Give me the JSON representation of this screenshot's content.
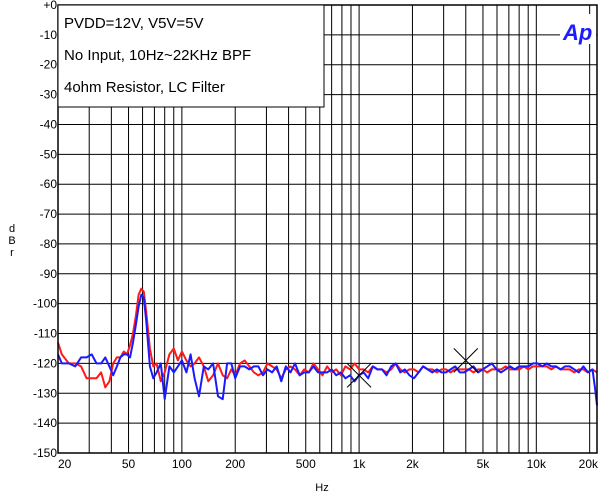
{
  "chart_data": {
    "type": "line",
    "title": "",
    "annotation_lines": [
      "PVDD=12V, V5V=5V",
      "No Input, 10Hz~22KHz BPF",
      "4ohm Resistor, LC Filter"
    ],
    "logo": "Ap",
    "xlabel": "Hz",
    "ylabel": "dBr",
    "xscale": "log",
    "xlim": [
      20,
      22000
    ],
    "ylim": [
      -150,
      0
    ],
    "grid": true,
    "legend": "none",
    "x_tick_labels": [
      {
        "value": 20,
        "label": "20"
      },
      {
        "value": 50,
        "label": "50"
      },
      {
        "value": 100,
        "label": "100"
      },
      {
        "value": 200,
        "label": "200"
      },
      {
        "value": 500,
        "label": "500"
      },
      {
        "value": 1000,
        "label": "1k"
      },
      {
        "value": 2000,
        "label": "2k"
      },
      {
        "value": 5000,
        "label": "5k"
      },
      {
        "value": 10000,
        "label": "10k"
      },
      {
        "value": 20000,
        "label": "20k"
      }
    ],
    "y_tick_labels": [
      {
        "value": 0,
        "label": "+0"
      },
      {
        "value": -10,
        "label": "-10"
      },
      {
        "value": -20,
        "label": "-20"
      },
      {
        "value": -30,
        "label": "-30"
      },
      {
        "value": -40,
        "label": "-40"
      },
      {
        "value": -50,
        "label": "-50"
      },
      {
        "value": -60,
        "label": "-60"
      },
      {
        "value": -70,
        "label": "-70"
      },
      {
        "value": -80,
        "label": "-80"
      },
      {
        "value": -90,
        "label": "-90"
      },
      {
        "value": -100,
        "label": "-100"
      },
      {
        "value": -110,
        "label": "-110"
      },
      {
        "value": -120,
        "label": "-120"
      },
      {
        "value": -130,
        "label": "-130"
      },
      {
        "value": -140,
        "label": "-140"
      },
      {
        "value": -150,
        "label": "-150"
      }
    ],
    "markers": [
      {
        "x": 1000,
        "y": -124
      },
      {
        "x": 4000,
        "y": -119
      }
    ],
    "series": [
      {
        "color": "#ff1a1a",
        "points": [
          [
            20,
            -113
          ],
          [
            21,
            -117
          ],
          [
            23,
            -120
          ],
          [
            25,
            -120
          ],
          [
            27,
            -121
          ],
          [
            29,
            -125
          ],
          [
            31,
            -125
          ],
          [
            33,
            -125
          ],
          [
            35,
            -123
          ],
          [
            37,
            -128
          ],
          [
            39,
            -126
          ],
          [
            41,
            -120
          ],
          [
            43,
            -118
          ],
          [
            45,
            -118
          ],
          [
            47,
            -116
          ],
          [
            49,
            -117
          ],
          [
            51,
            -114
          ],
          [
            53,
            -110
          ],
          [
            55,
            -104
          ],
          [
            57,
            -97
          ],
          [
            59,
            -95
          ],
          [
            61,
            -96
          ],
          [
            63,
            -103
          ],
          [
            66,
            -115
          ],
          [
            69,
            -121
          ],
          [
            72,
            -120
          ],
          [
            76,
            -126
          ],
          [
            80,
            -123
          ],
          [
            85,
            -117
          ],
          [
            90,
            -115
          ],
          [
            95,
            -119
          ],
          [
            100,
            -116
          ],
          [
            106,
            -119
          ],
          [
            112,
            -121
          ],
          [
            118,
            -120
          ],
          [
            125,
            -118
          ],
          [
            133,
            -121
          ],
          [
            141,
            -126
          ],
          [
            150,
            -124
          ],
          [
            160,
            -120
          ],
          [
            170,
            -124
          ],
          [
            180,
            -125
          ],
          [
            190,
            -122
          ],
          [
            200,
            -124
          ],
          [
            213,
            -120
          ],
          [
            226,
            -119
          ],
          [
            240,
            -121
          ],
          [
            255,
            -123
          ],
          [
            270,
            -124
          ],
          [
            287,
            -123
          ],
          [
            304,
            -120
          ],
          [
            323,
            -121
          ],
          [
            343,
            -122
          ],
          [
            364,
            -125
          ],
          [
            386,
            -122
          ],
          [
            410,
            -121
          ],
          [
            435,
            -122
          ],
          [
            462,
            -124
          ],
          [
            490,
            -122
          ],
          [
            520,
            -123
          ],
          [
            552,
            -120
          ],
          [
            586,
            -122
          ],
          [
            622,
            -124
          ],
          [
            660,
            -121
          ],
          [
            700,
            -123
          ],
          [
            743,
            -122
          ],
          [
            789,
            -124
          ],
          [
            837,
            -121
          ],
          [
            888,
            -122
          ],
          [
            943,
            -120
          ],
          [
            1000,
            -122
          ],
          [
            1061,
            -122
          ],
          [
            1126,
            -123
          ],
          [
            1195,
            -121
          ],
          [
            1268,
            -122
          ],
          [
            1346,
            -122
          ],
          [
            1428,
            -123
          ],
          [
            1516,
            -122
          ],
          [
            1609,
            -120
          ],
          [
            1707,
            -122
          ],
          [
            1812,
            -123
          ],
          [
            1923,
            -122
          ],
          [
            2041,
            -122
          ],
          [
            2166,
            -123
          ],
          [
            2298,
            -121
          ],
          [
            2439,
            -122
          ],
          [
            2589,
            -122
          ],
          [
            2747,
            -123
          ],
          [
            2916,
            -122
          ],
          [
            3094,
            -122
          ],
          [
            3284,
            -123
          ],
          [
            3485,
            -122
          ],
          [
            3699,
            -122
          ],
          [
            3925,
            -122
          ],
          [
            4166,
            -122
          ],
          [
            4421,
            -123
          ],
          [
            4692,
            -122
          ],
          [
            4980,
            -122
          ],
          [
            5285,
            -123
          ],
          [
            5609,
            -122
          ],
          [
            5953,
            -122
          ],
          [
            6317,
            -122
          ],
          [
            6704,
            -121
          ],
          [
            7115,
            -122
          ],
          [
            7551,
            -122
          ],
          [
            8014,
            -122
          ],
          [
            8505,
            -121
          ],
          [
            9026,
            -122
          ],
          [
            9579,
            -121
          ],
          [
            10166,
            -121
          ],
          [
            10789,
            -121
          ],
          [
            11450,
            -121
          ],
          [
            12152,
            -122
          ],
          [
            12896,
            -121
          ],
          [
            13686,
            -122
          ],
          [
            14525,
            -122
          ],
          [
            15415,
            -122
          ],
          [
            16359,
            -123
          ],
          [
            17361,
            -122
          ],
          [
            18425,
            -122
          ],
          [
            19554,
            -123
          ],
          [
            20752,
            -122
          ],
          [
            22000,
            -123
          ]
        ]
      },
      {
        "color": "#1a1aff",
        "points": [
          [
            20,
            -117
          ],
          [
            21,
            -120
          ],
          [
            23,
            -120
          ],
          [
            25,
            -121
          ],
          [
            27,
            -118
          ],
          [
            29,
            -118
          ],
          [
            31,
            -117
          ],
          [
            33,
            -120
          ],
          [
            35,
            -120
          ],
          [
            37,
            -118
          ],
          [
            39,
            -121
          ],
          [
            41,
            -124
          ],
          [
            43,
            -121
          ],
          [
            45,
            -118
          ],
          [
            47,
            -117
          ],
          [
            49,
            -117
          ],
          [
            51,
            -118
          ],
          [
            53,
            -113
          ],
          [
            55,
            -107
          ],
          [
            57,
            -101
          ],
          [
            59,
            -97
          ],
          [
            61,
            -98
          ],
          [
            63,
            -106
          ],
          [
            66,
            -121
          ],
          [
            69,
            -125
          ],
          [
            72,
            -123
          ],
          [
            76,
            -120
          ],
          [
            80,
            -132
          ],
          [
            85,
            -121
          ],
          [
            90,
            -123
          ],
          [
            95,
            -121
          ],
          [
            100,
            -119
          ],
          [
            106,
            -123
          ],
          [
            112,
            -117
          ],
          [
            118,
            -125
          ],
          [
            125,
            -131
          ],
          [
            133,
            -121
          ],
          [
            141,
            -122
          ],
          [
            150,
            -120
          ],
          [
            160,
            -131
          ],
          [
            170,
            -132
          ],
          [
            180,
            -120
          ],
          [
            190,
            -120
          ],
          [
            200,
            -125
          ],
          [
            213,
            -121
          ],
          [
            226,
            -121
          ],
          [
            240,
            -122
          ],
          [
            255,
            -121
          ],
          [
            270,
            -121
          ],
          [
            287,
            -124
          ],
          [
            304,
            -122
          ],
          [
            323,
            -123
          ],
          [
            343,
            -121
          ],
          [
            364,
            -126
          ],
          [
            386,
            -121
          ],
          [
            410,
            -123
          ],
          [
            435,
            -120
          ],
          [
            462,
            -124
          ],
          [
            490,
            -123
          ],
          [
            520,
            -123
          ],
          [
            552,
            -121
          ],
          [
            586,
            -123
          ],
          [
            622,
            -123
          ],
          [
            660,
            -123
          ],
          [
            700,
            -122
          ],
          [
            743,
            -124
          ],
          [
            789,
            -123
          ],
          [
            837,
            -125
          ],
          [
            888,
            -124
          ],
          [
            943,
            -126
          ],
          [
            1000,
            -124
          ],
          [
            1061,
            -123
          ],
          [
            1126,
            -125
          ],
          [
            1195,
            -121
          ],
          [
            1268,
            -122
          ],
          [
            1346,
            -122
          ],
          [
            1428,
            -124
          ],
          [
            1516,
            -121
          ],
          [
            1609,
            -120
          ],
          [
            1707,
            -123
          ],
          [
            1812,
            -122
          ],
          [
            1923,
            -124
          ],
          [
            2041,
            -125
          ],
          [
            2166,
            -123
          ],
          [
            2298,
            -121
          ],
          [
            2439,
            -122
          ],
          [
            2589,
            -123
          ],
          [
            2747,
            -122
          ],
          [
            2916,
            -123
          ],
          [
            3094,
            -123
          ],
          [
            3284,
            -122
          ],
          [
            3485,
            -121
          ],
          [
            3699,
            -123
          ],
          [
            3925,
            -123
          ],
          [
            4166,
            -122
          ],
          [
            4421,
            -121
          ],
          [
            4692,
            -123
          ],
          [
            4980,
            -122
          ],
          [
            5285,
            -121
          ],
          [
            5609,
            -120
          ],
          [
            5953,
            -122
          ],
          [
            6317,
            -123
          ],
          [
            6704,
            -122
          ],
          [
            7115,
            -121
          ],
          [
            7551,
            -122
          ],
          [
            8014,
            -121
          ],
          [
            8505,
            -121
          ],
          [
            9026,
            -121
          ],
          [
            9579,
            -120
          ],
          [
            10166,
            -120
          ],
          [
            10789,
            -121
          ],
          [
            11450,
            -120
          ],
          [
            12152,
            -121
          ],
          [
            12896,
            -121
          ],
          [
            13686,
            -122
          ],
          [
            14525,
            -121
          ],
          [
            15415,
            -121
          ],
          [
            16359,
            -122
          ],
          [
            17361,
            -123
          ],
          [
            18425,
            -121
          ],
          [
            19554,
            -123
          ],
          [
            20752,
            -122
          ],
          [
            21400,
            -128
          ],
          [
            22000,
            -134
          ]
        ]
      }
    ]
  }
}
